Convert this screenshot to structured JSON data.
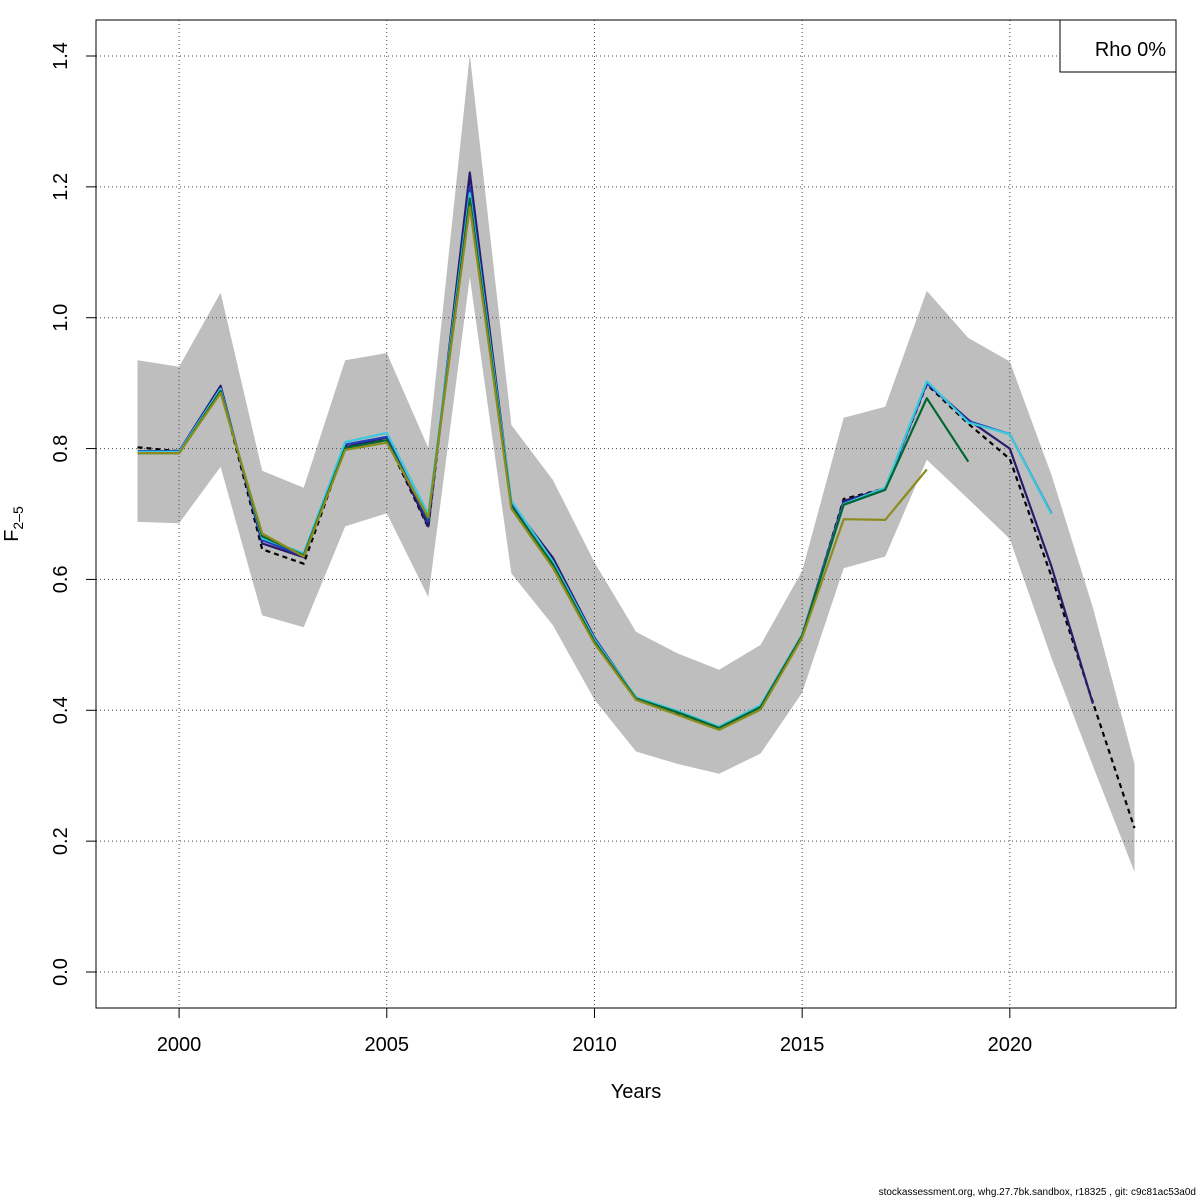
{
  "chart_data": {
    "type": "line",
    "xlabel": "Years",
    "ylabel_main": "F",
    "ylabel_sub": "2–5",
    "xlim": [
      1998,
      2024
    ],
    "ylim": [
      -0.055,
      1.455
    ],
    "x_ticks": [
      2000,
      2005,
      2010,
      2015,
      2020
    ],
    "y_ticks": [
      0.0,
      0.2,
      0.4,
      0.6,
      0.8,
      1.0,
      1.2,
      1.4
    ],
    "y_tick_labels": [
      "0.0",
      "0.2",
      "0.4",
      "0.6",
      "0.8",
      "1.0",
      "1.2",
      "1.4"
    ],
    "grid": true,
    "legend": {
      "position": "top-right",
      "label": "Rho 0%"
    },
    "confidence_band": {
      "color": "#bebebe",
      "x": [
        1999,
        2000,
        2001,
        2002,
        2003,
        2004,
        2005,
        2006,
        2007,
        2008,
        2009,
        2010,
        2011,
        2012,
        2013,
        2014,
        2015,
        2016,
        2017,
        2018,
        2019,
        2020,
        2021,
        2022,
        2023
      ],
      "lower": [
        0.688,
        0.686,
        0.772,
        0.545,
        0.527,
        0.681,
        0.701,
        0.573,
        1.062,
        0.609,
        0.53,
        0.416,
        0.337,
        0.318,
        0.303,
        0.334,
        0.427,
        0.617,
        0.635,
        0.783,
        0.723,
        0.662,
        0.48,
        0.315,
        0.153
      ],
      "upper": [
        0.935,
        0.925,
        1.038,
        0.766,
        0.74,
        0.935,
        0.946,
        0.801,
        1.402,
        0.836,
        0.752,
        0.626,
        0.52,
        0.487,
        0.462,
        0.5,
        0.613,
        0.847,
        0.864,
        1.041,
        0.969,
        0.933,
        0.76,
        0.557,
        0.318
      ]
    },
    "series": [
      {
        "color": "#000000",
        "dashed": true,
        "x": [
          1999,
          2000,
          2001,
          2002,
          2003,
          2004,
          2005,
          2006,
          2007,
          2008,
          2009,
          2010,
          2011,
          2012,
          2013,
          2014,
          2015,
          2016,
          2017,
          2018,
          2019,
          2020,
          2021,
          2022,
          2023
        ],
        "y": [
          0.802,
          0.796,
          0.893,
          0.646,
          0.624,
          0.803,
          0.813,
          0.679,
          1.215,
          0.713,
          0.629,
          0.51,
          0.418,
          0.396,
          0.373,
          0.406,
          0.513,
          0.723,
          0.739,
          0.898,
          0.838,
          0.784,
          0.605,
          0.412,
          0.22
        ]
      },
      {
        "color": "#2a1a6e",
        "x": [
          1999,
          2000,
          2001,
          2002,
          2003,
          2004,
          2005,
          2006,
          2007,
          2008,
          2009,
          2010,
          2011,
          2012,
          2013,
          2014,
          2015,
          2016,
          2017,
          2018,
          2019,
          2020,
          2021,
          2022
        ],
        "y": [
          0.796,
          0.796,
          0.896,
          0.655,
          0.634,
          0.802,
          0.817,
          0.681,
          1.222,
          0.716,
          0.633,
          0.511,
          0.419,
          0.398,
          0.374,
          0.407,
          0.515,
          0.72,
          0.739,
          0.9,
          0.844,
          0.8,
          0.62,
          0.41
        ]
      },
      {
        "color": "#1e3fb8",
        "x": [
          1999,
          2000,
          2001,
          2002,
          2003,
          2004,
          2005,
          2006,
          2007,
          2008,
          2009,
          2010,
          2011,
          2012,
          2013,
          2014,
          2015,
          2016,
          2017,
          2018,
          2019,
          2020,
          2021
        ],
        "y": [
          0.796,
          0.796,
          0.892,
          0.66,
          0.636,
          0.806,
          0.818,
          0.689,
          1.2,
          0.716,
          0.628,
          0.51,
          0.419,
          0.398,
          0.374,
          0.407,
          0.515,
          0.717,
          0.739,
          0.9,
          0.842,
          0.822,
          0.701
        ]
      },
      {
        "color": "#3cc8dc",
        "x": [
          1999,
          2000,
          2001,
          2002,
          2003,
          2004,
          2005,
          2006,
          2007,
          2008,
          2009,
          2010,
          2011,
          2012,
          2013,
          2014,
          2015,
          2016,
          2017,
          2018,
          2019,
          2020,
          2021
        ],
        "y": [
          0.795,
          0.795,
          0.891,
          0.663,
          0.64,
          0.81,
          0.824,
          0.7,
          1.19,
          0.72,
          0.627,
          0.508,
          0.42,
          0.399,
          0.375,
          0.408,
          0.515,
          0.715,
          0.74,
          0.903,
          0.84,
          0.822,
          0.7
        ]
      },
      {
        "color": "#006633",
        "x": [
          1999,
          2000,
          2001,
          2002,
          2003,
          2004,
          2005,
          2006,
          2007,
          2008,
          2009,
          2010,
          2011,
          2012,
          2013,
          2014,
          2015,
          2016,
          2017,
          2018,
          2019
        ],
        "y": [
          0.793,
          0.793,
          0.888,
          0.666,
          0.637,
          0.801,
          0.813,
          0.693,
          1.182,
          0.712,
          0.623,
          0.505,
          0.418,
          0.397,
          0.373,
          0.405,
          0.514,
          0.714,
          0.737,
          0.877,
          0.78
        ]
      },
      {
        "color": "#8c8c1e",
        "x": [
          1999,
          2000,
          2001,
          2002,
          2003,
          2004,
          2005,
          2006,
          2007,
          2008,
          2009,
          2010,
          2011,
          2012,
          2013,
          2014,
          2015,
          2016,
          2017,
          2018
        ],
        "y": [
          0.793,
          0.793,
          0.885,
          0.67,
          0.635,
          0.798,
          0.809,
          0.695,
          1.17,
          0.708,
          0.618,
          0.502,
          0.416,
          0.393,
          0.37,
          0.401,
          0.511,
          0.692,
          0.691,
          0.768
        ]
      }
    ]
  },
  "footer": "stockassessment.org, whg.27.7bk.sandbox, r18325 , git: c9c81ac53a0d"
}
